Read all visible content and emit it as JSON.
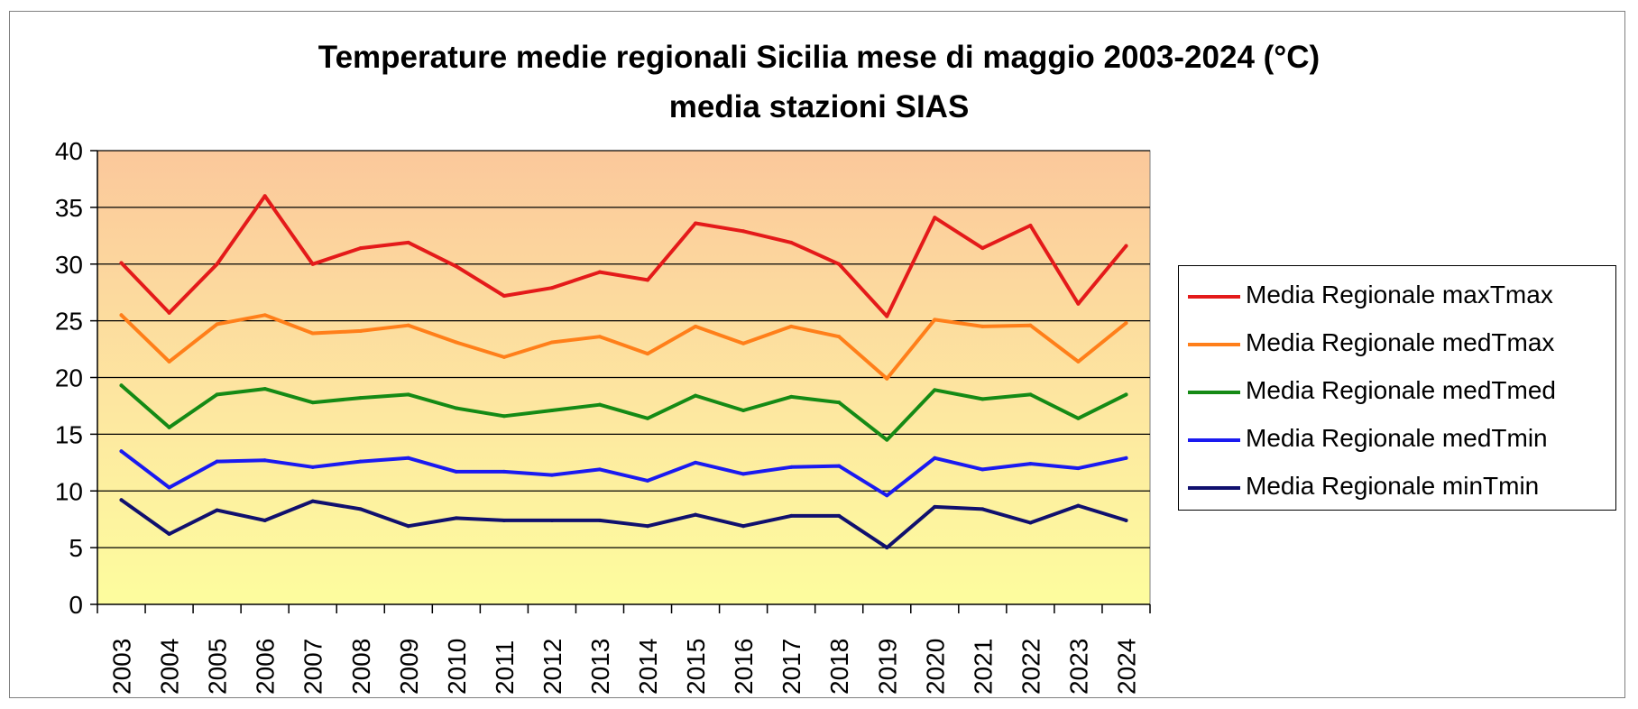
{
  "chart_data": {
    "type": "line",
    "title": "Temperature medie regionali Sicilia mese di maggio 2003-2024 (°C)",
    "subtitle": "media stazioni SIAS",
    "xlabel": "",
    "ylabel": "",
    "ylim": [
      0,
      40
    ],
    "yticks": [
      0,
      5,
      10,
      15,
      20,
      25,
      30,
      35,
      40
    ],
    "grid": true,
    "legend_position": "right",
    "background": "gradient orange (top) to pale yellow (bottom)",
    "categories": [
      "2003",
      "2004",
      "2005",
      "2006",
      "2007",
      "2008",
      "2009",
      "2010",
      "2011",
      "2012",
      "2013",
      "2014",
      "2015",
      "2016",
      "2017",
      "2018",
      "2019",
      "2020",
      "2021",
      "2022",
      "2023",
      "2024"
    ],
    "series": [
      {
        "name": "Media Regionale maxTmax",
        "color": "#e41a1a",
        "values": [
          30.1,
          25.7,
          30.0,
          36.0,
          30.0,
          31.4,
          31.9,
          29.8,
          27.2,
          27.9,
          29.3,
          28.6,
          33.6,
          32.9,
          31.9,
          30.0,
          25.4,
          34.1,
          31.4,
          33.4,
          26.5,
          31.6
        ]
      },
      {
        "name": "Media Regionale medTmax",
        "color": "#ff7f1a",
        "values": [
          25.5,
          21.4,
          24.7,
          25.5,
          23.9,
          24.1,
          24.6,
          23.1,
          21.8,
          23.1,
          23.6,
          22.1,
          24.5,
          23.0,
          24.5,
          23.6,
          19.9,
          25.1,
          24.5,
          24.6,
          21.4,
          24.8
        ]
      },
      {
        "name": "Media Regionale medTmed",
        "color": "#158a15",
        "values": [
          19.3,
          15.6,
          18.5,
          19.0,
          17.8,
          18.2,
          18.5,
          17.3,
          16.6,
          17.1,
          17.6,
          16.4,
          18.4,
          17.1,
          18.3,
          17.8,
          14.5,
          18.9,
          18.1,
          18.5,
          16.4,
          18.5
        ]
      },
      {
        "name": "Media Regionale medTmin",
        "color": "#1a1af0",
        "values": [
          13.5,
          10.3,
          12.6,
          12.7,
          12.1,
          12.6,
          12.9,
          11.7,
          11.7,
          11.4,
          11.9,
          10.9,
          12.5,
          11.5,
          12.1,
          12.2,
          9.6,
          12.9,
          11.9,
          12.4,
          12.0,
          12.9
        ]
      },
      {
        "name": "Media Regionale minTmin",
        "color": "#10106e",
        "values": [
          9.2,
          6.2,
          8.3,
          7.4,
          9.1,
          8.4,
          6.9,
          7.6,
          7.4,
          7.4,
          7.4,
          6.9,
          7.9,
          6.9,
          7.8,
          7.8,
          5.0,
          8.6,
          8.4,
          7.2,
          8.7,
          7.4
        ]
      }
    ]
  }
}
